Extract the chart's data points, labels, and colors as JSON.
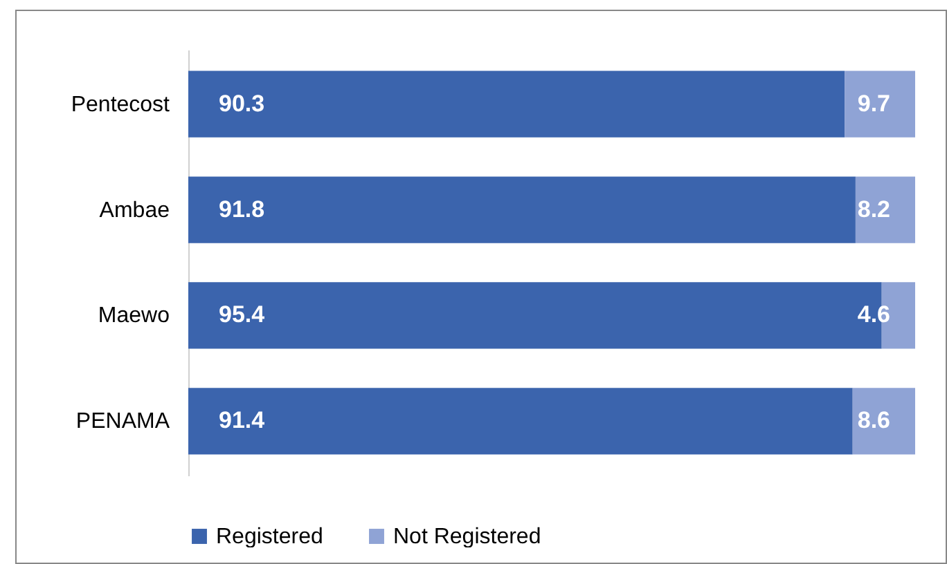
{
  "chart_data": {
    "type": "bar",
    "orientation": "horizontal",
    "stacked": true,
    "categories": [
      "Pentecost",
      "Ambae",
      "Maewo",
      "PENAMA"
    ],
    "series": [
      {
        "name": "Registered",
        "color": "#3b64ad",
        "values": [
          90.3,
          91.8,
          95.4,
          91.4
        ]
      },
      {
        "name": "Not Registered",
        "color": "#8fa3d5",
        "values": [
          9.7,
          8.2,
          4.6,
          8.6
        ]
      }
    ],
    "data_labels": true,
    "legend": "bottom"
  }
}
